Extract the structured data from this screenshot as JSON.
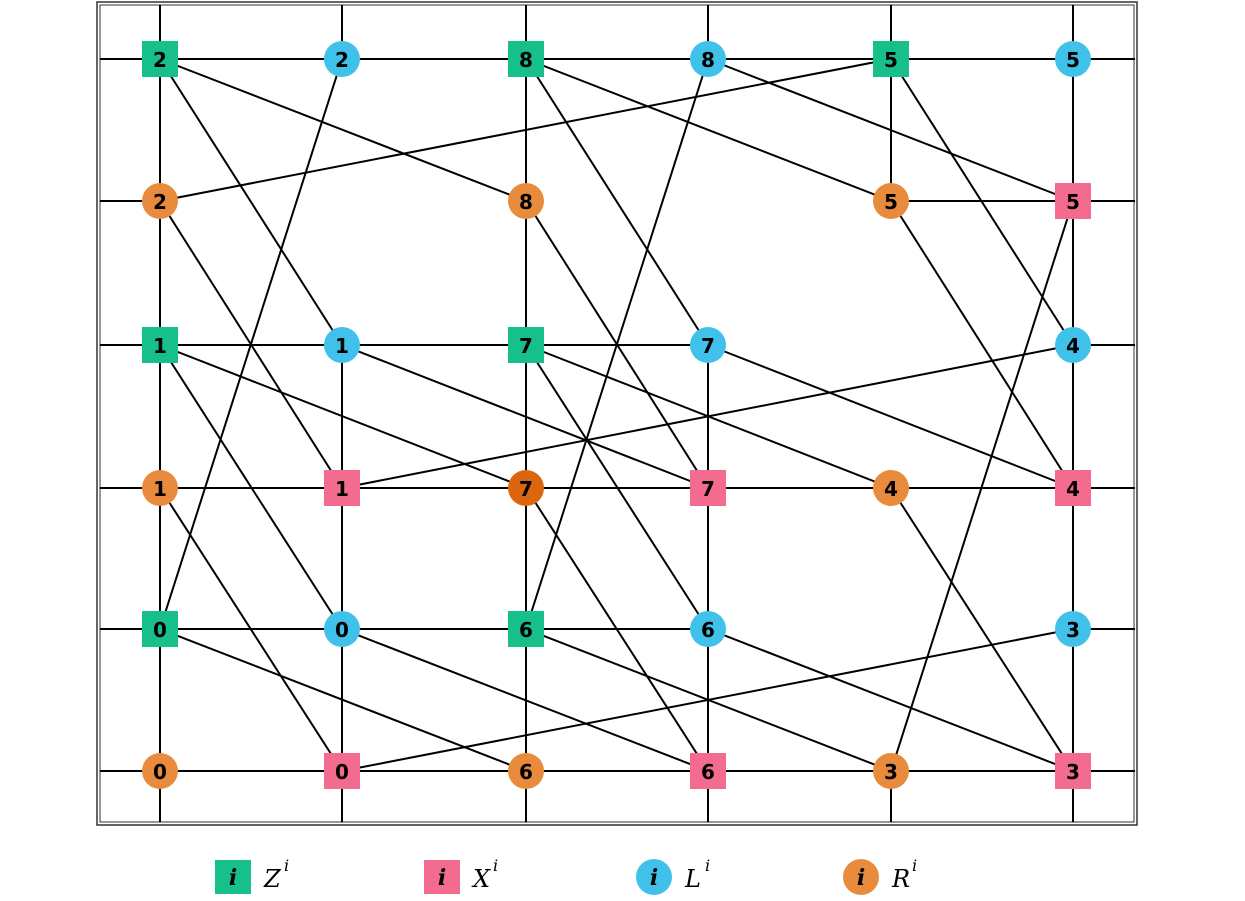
{
  "nodes": [
    {
      "label": "2"
    },
    {
      "label": "2"
    },
    {
      "label": "8"
    },
    {
      "label": "8"
    },
    {
      "label": "5"
    },
    {
      "label": "5"
    },
    {
      "label": "2"
    },
    {
      "label": "8"
    },
    {
      "label": "5"
    },
    {
      "label": "5"
    },
    {
      "label": "1"
    },
    {
      "label": "1"
    },
    {
      "label": "7"
    },
    {
      "label": "7"
    },
    {
      "label": "4"
    },
    {
      "label": "1"
    },
    {
      "label": "1"
    },
    {
      "label": "7"
    },
    {
      "label": "7"
    },
    {
      "label": "4"
    },
    {
      "label": "4"
    },
    {
      "label": "0"
    },
    {
      "label": "0"
    },
    {
      "label": "6"
    },
    {
      "label": "6"
    },
    {
      "label": "3"
    },
    {
      "label": "0"
    },
    {
      "label": "0"
    },
    {
      "label": "6"
    },
    {
      "label": "6"
    },
    {
      "label": "3"
    },
    {
      "label": "3"
    }
  ],
  "legend": [
    {
      "marker": "i",
      "symbol": "Z",
      "superscript": "i"
    },
    {
      "marker": "i",
      "symbol": "X",
      "superscript": "i"
    },
    {
      "marker": "i",
      "symbol": "L",
      "superscript": "i"
    },
    {
      "marker": "i",
      "symbol": "R",
      "superscript": "i"
    }
  ]
}
